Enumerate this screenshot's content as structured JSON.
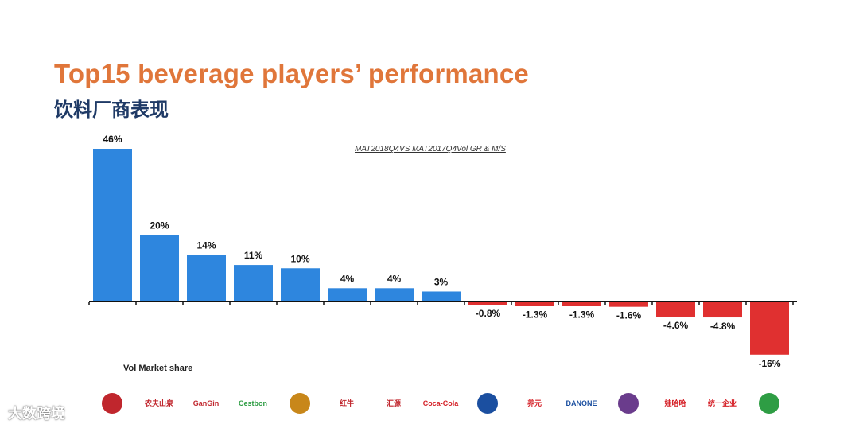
{
  "title": "Top15 beverage players’ performance",
  "subtitle": "饮料厂商表现",
  "note": "MAT2018Q4VS MAT2017Q4Vol GR & M/S",
  "vol_market_share_label": "Vol Market share",
  "watermark": "大数跨境",
  "colors": {
    "positive": "#2e86de",
    "negative": "#e03030",
    "title": "#e0763a",
    "subtitle": "#1f3a66"
  },
  "logos": [
    {
      "icon": "red-logo-icon",
      "text": "",
      "color": "#c0262d"
    },
    {
      "icon": "nongfu-spring-logo-icon",
      "text": "农夫山泉",
      "color": "#c0262d"
    },
    {
      "icon": "ganten-logo-icon",
      "text": "GanGin",
      "color": "#c0262d"
    },
    {
      "icon": "cestbon-logo-icon",
      "text": "Cestbon",
      "color": "#2e9d44"
    },
    {
      "icon": "wanglaoji-logo-icon",
      "text": "",
      "color": "#c8871a"
    },
    {
      "icon": "redbull-logo-icon",
      "text": "红牛",
      "color": "#c0262d"
    },
    {
      "icon": "huiyuan-logo-icon",
      "text": "汇源",
      "color": "#c0262d"
    },
    {
      "icon": "coca-cola-logo-icon",
      "text": "Coca-Cola",
      "color": "#d52027"
    },
    {
      "icon": "pepsi-logo-icon",
      "text": "",
      "color": "#1b4fa0"
    },
    {
      "icon": "yangyuan-logo-icon",
      "text": "养元",
      "color": "#d52027"
    },
    {
      "icon": "danone-logo-icon",
      "text": "DANONE",
      "color": "#1b4fa0"
    },
    {
      "icon": "wahaha-logo-icon",
      "text": "",
      "color": "#6a3c8c"
    },
    {
      "icon": "wahaha-script-logo-icon",
      "text": "娃哈哈",
      "color": "#d52027"
    },
    {
      "icon": "uni-president-logo-icon",
      "text": "统一企业",
      "color": "#d52027"
    },
    {
      "icon": "jdb-logo-icon",
      "text": "",
      "color": "#2e9d44"
    }
  ],
  "chart_data": {
    "type": "bar",
    "title": "Top15 beverage players’ performance",
    "subtitle": "饮料厂商表现",
    "values": [
      46,
      20,
      14,
      11,
      10,
      4,
      4,
      3,
      -0.8,
      -1.3,
      -1.3,
      -1.6,
      -4.6,
      -4.8,
      -16
    ],
    "labels": [
      "46%",
      "20%",
      "14%",
      "11%",
      "10%",
      "4%",
      "4%",
      "3%",
      "-0.8%",
      "-1.3%",
      "-1.3%",
      "-1.6%",
      "-4.6%",
      "-4.8%",
      "-16%"
    ],
    "unit": "%",
    "grid": false,
    "legend": "none"
  }
}
